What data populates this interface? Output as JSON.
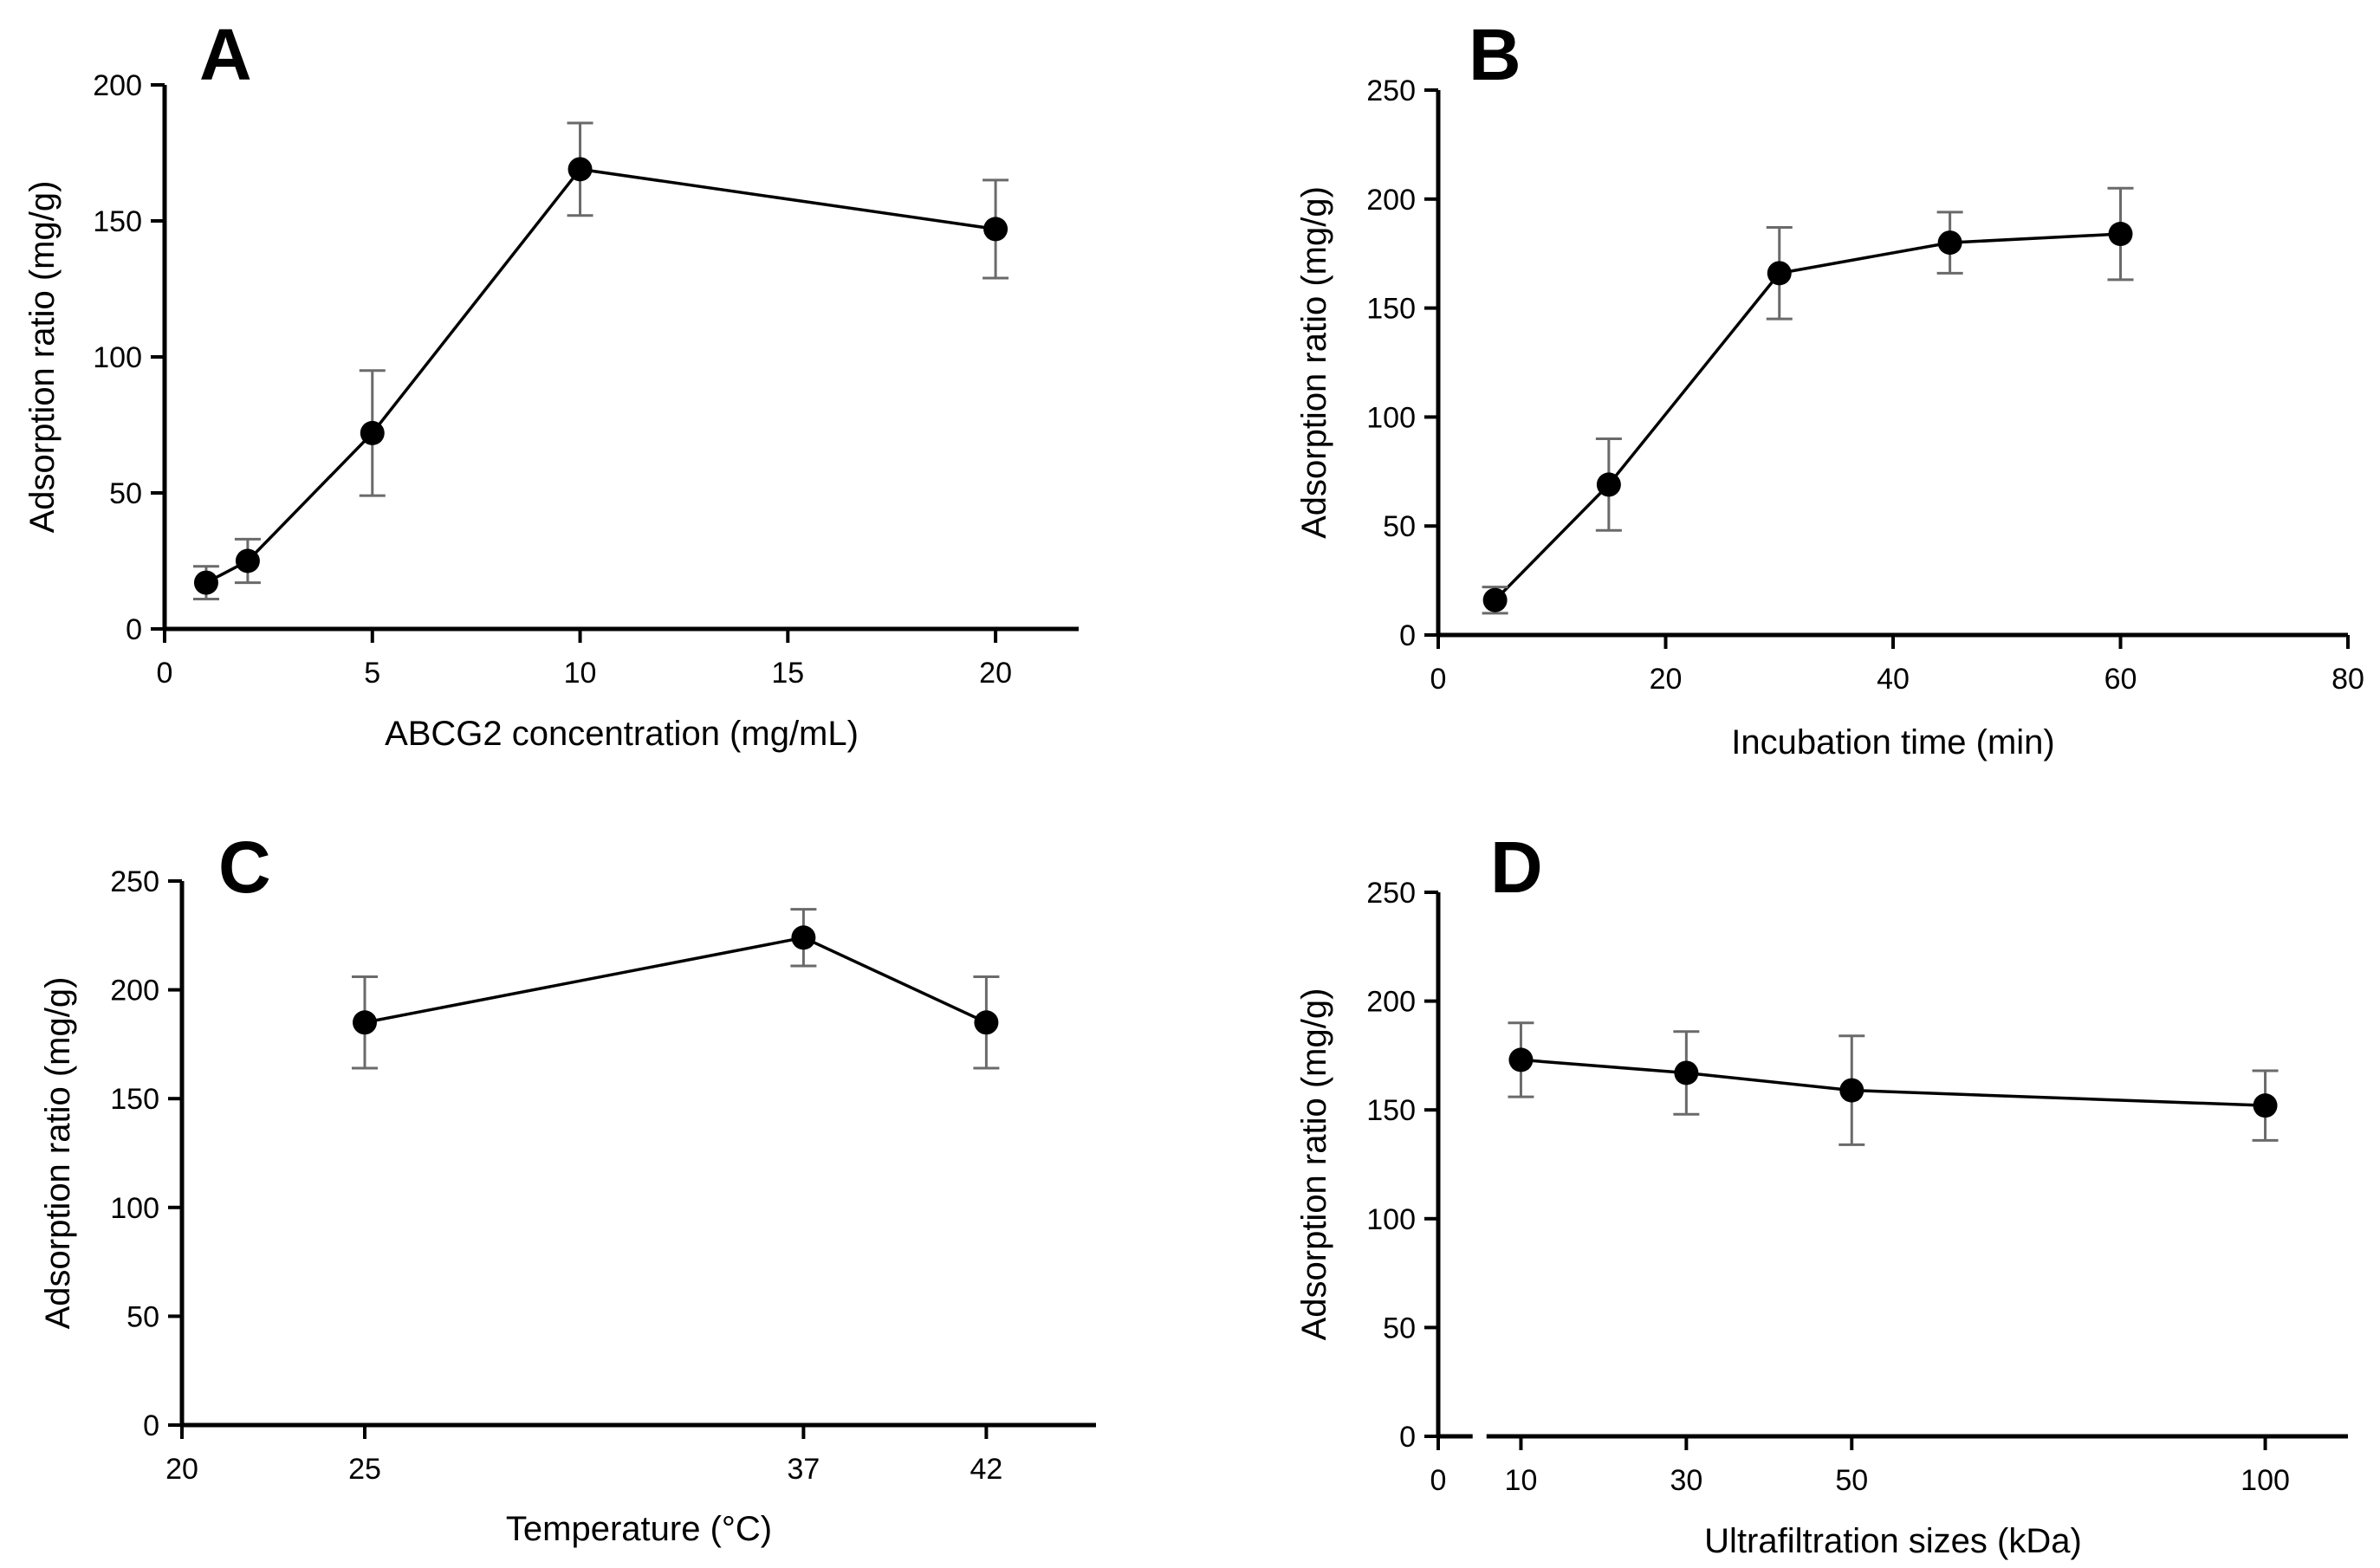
{
  "chart_data": [
    {
      "type": "line",
      "panel": "A",
      "xlabel": "ABCG2 concentration (mg/mL)",
      "ylabel": "Adsorption ratio (mg/g)",
      "xlim": [
        0,
        22
      ],
      "ylim": [
        0,
        200
      ],
      "xticks": [
        0,
        5,
        10,
        15,
        20
      ],
      "xtick_labels": [
        "0",
        "5",
        "10",
        "15",
        "20"
      ],
      "yticks": [
        0,
        50,
        100,
        150,
        200
      ],
      "ytick_labels": [
        "0",
        "50",
        "100",
        "150",
        "200"
      ],
      "x": [
        1,
        2,
        5,
        10,
        20
      ],
      "y": [
        17,
        25,
        72,
        169,
        147
      ],
      "err": [
        6,
        8,
        23,
        17,
        18
      ],
      "grid": false
    },
    {
      "type": "line",
      "panel": "B",
      "xlabel": "Incubation time (min)",
      "ylabel": "Adsorption ratio (mg/g)",
      "xlim": [
        0,
        80
      ],
      "ylim": [
        0,
        250
      ],
      "xticks": [
        0,
        20,
        40,
        60,
        80
      ],
      "xtick_labels": [
        "0",
        "20",
        "40",
        "60",
        "80"
      ],
      "yticks": [
        0,
        50,
        100,
        150,
        200,
        250
      ],
      "ytick_labels": [
        "0",
        "50",
        "100",
        "150",
        "200",
        "250"
      ],
      "x": [
        5,
        15,
        30,
        45,
        60
      ],
      "y": [
        16,
        69,
        166,
        180,
        184
      ],
      "err": [
        6,
        21,
        21,
        14,
        21
      ],
      "grid": false
    },
    {
      "type": "line",
      "panel": "C",
      "xlabel": "Temperature (°C)",
      "ylabel": "Adsorption ratio (mg/g)",
      "xlim": [
        20,
        45
      ],
      "ylim": [
        0,
        250
      ],
      "xticks": [
        20,
        25,
        37,
        42
      ],
      "xtick_labels": [
        "20",
        "25",
        "37",
        "42"
      ],
      "yticks": [
        0,
        50,
        100,
        150,
        200,
        250
      ],
      "ytick_labels": [
        "0",
        "50",
        "100",
        "150",
        "200",
        "250"
      ],
      "x": [
        25,
        37,
        42
      ],
      "y": [
        185,
        224,
        185
      ],
      "err": [
        21,
        13,
        21
      ],
      "grid": false
    },
    {
      "type": "line",
      "panel": "D",
      "xlabel": "Ultrafiltration sizes (kDa)",
      "ylabel": "Adsorption ratio (mg/g)",
      "xlim": [
        0,
        110
      ],
      "ylim": [
        0,
        250
      ],
      "xticks": [
        0,
        10,
        30,
        50,
        100
      ],
      "xtick_labels": [
        "0",
        "10",
        "30",
        "50",
        "100"
      ],
      "yticks": [
        0,
        50,
        100,
        150,
        200,
        250
      ],
      "ytick_labels": [
        "0",
        "50",
        "100",
        "150",
        "200",
        "250"
      ],
      "x": [
        10,
        30,
        50,
        100
      ],
      "y": [
        173,
        167,
        159,
        152
      ],
      "err": [
        17,
        19,
        25,
        16
      ],
      "grid": false
    }
  ]
}
